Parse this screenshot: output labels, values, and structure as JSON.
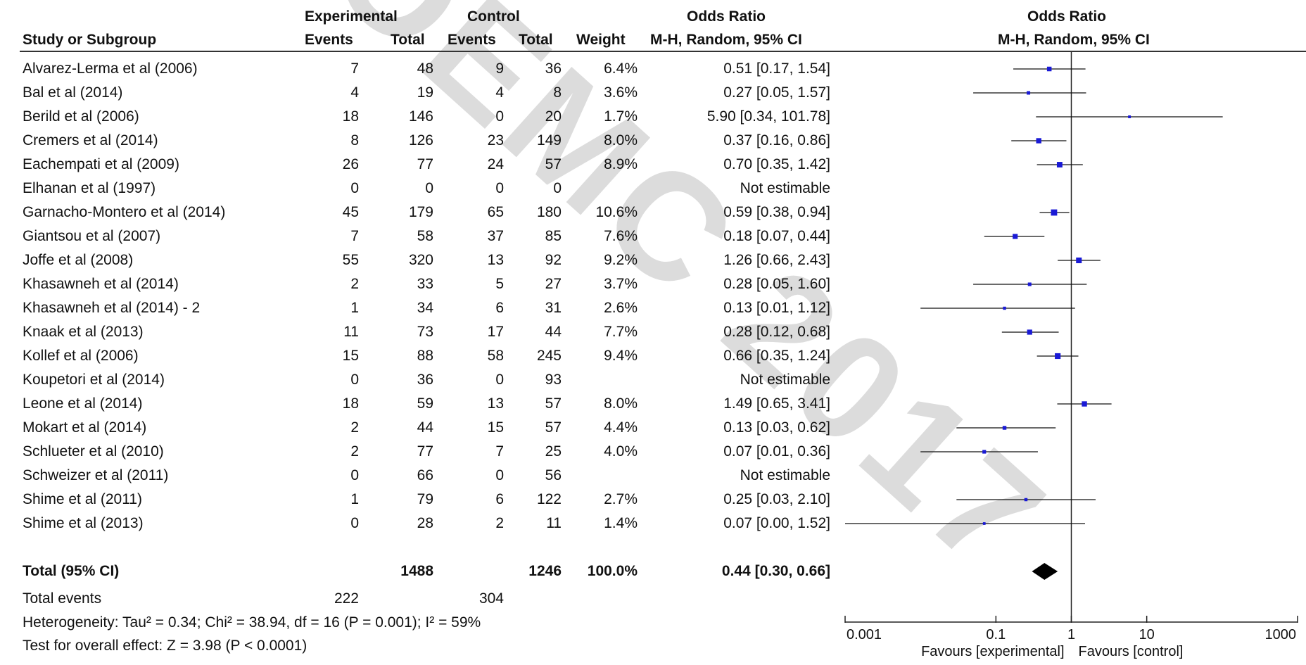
{
  "watermark": "OEMC 2017",
  "headers": {
    "group_exp": "Experimental",
    "group_ctrl": "Control",
    "odds_ratio": "Odds Ratio",
    "study": "Study or Subgroup",
    "events": "Events",
    "total": "Total",
    "weight": "Weight",
    "method": "M-H, Random, 95% CI",
    "plot_title": "Odds Ratio",
    "plot_method": "M-H, Random, 95% CI"
  },
  "summary": {
    "label": "Total (95% CI)",
    "exp_total": "1488",
    "ctrl_total": "1246",
    "weight": "100.0%",
    "ci_text": "0.44 [0.30, 0.66]",
    "events_label": "Total events",
    "exp_events": "222",
    "ctrl_events": "304",
    "heterogeneity": "Heterogeneity: Tau² = 0.34; Chi² = 38.94, df = 16 (P = 0.001); I² = 59%",
    "overall_effect": "Test for overall effect: Z = 3.98 (P < 0.0001)"
  },
  "axis": {
    "ticks": [
      "0.001",
      "0.1",
      "1",
      "10",
      "1000"
    ],
    "favours_left": "Favours [experimental]",
    "favours_right": "Favours [control]"
  },
  "chart_data": {
    "type": "forest",
    "xscale": "log",
    "xlim": [
      0.001,
      1000
    ],
    "null_line": 1,
    "summary": {
      "or": 0.44,
      "lo": 0.3,
      "hi": 0.66
    },
    "studies": [
      {
        "study": "Alvarez-Lerma et al (2006)",
        "e_ev": "7",
        "e_tot": "48",
        "c_ev": "9",
        "c_tot": "36",
        "weight": "6.4%",
        "ci": "0.51 [0.17, 1.54]",
        "or": 0.51,
        "lo": 0.17,
        "hi": 1.54
      },
      {
        "study": "Bal et al (2014)",
        "e_ev": "4",
        "e_tot": "19",
        "c_ev": "4",
        "c_tot": "8",
        "weight": "3.6%",
        "ci": "0.27 [0.05, 1.57]",
        "or": 0.27,
        "lo": 0.05,
        "hi": 1.57
      },
      {
        "study": "Berild et al (2006)",
        "e_ev": "18",
        "e_tot": "146",
        "c_ev": "0",
        "c_tot": "20",
        "weight": "1.7%",
        "ci": "5.90 [0.34, 101.78]",
        "or": 5.9,
        "lo": 0.34,
        "hi": 101.78
      },
      {
        "study": "Cremers et al (2014)",
        "e_ev": "8",
        "e_tot": "126",
        "c_ev": "23",
        "c_tot": "149",
        "weight": "8.0%",
        "ci": "0.37 [0.16, 0.86]",
        "or": 0.37,
        "lo": 0.16,
        "hi": 0.86
      },
      {
        "study": "Eachempati et al (2009)",
        "e_ev": "26",
        "e_tot": "77",
        "c_ev": "24",
        "c_tot": "57",
        "weight": "8.9%",
        "ci": "0.70 [0.35, 1.42]",
        "or": 0.7,
        "lo": 0.35,
        "hi": 1.42
      },
      {
        "study": "Elhanan et al (1997)",
        "e_ev": "0",
        "e_tot": "0",
        "c_ev": "0",
        "c_tot": "0",
        "weight": "",
        "ci": "Not estimable",
        "or": null,
        "lo": null,
        "hi": null
      },
      {
        "study": "Garnacho-Montero et al (2014)",
        "e_ev": "45",
        "e_tot": "179",
        "c_ev": "65",
        "c_tot": "180",
        "weight": "10.6%",
        "ci": "0.59 [0.38, 0.94]",
        "or": 0.59,
        "lo": 0.38,
        "hi": 0.94
      },
      {
        "study": "Giantsou et al (2007)",
        "e_ev": "7",
        "e_tot": "58",
        "c_ev": "37",
        "c_tot": "85",
        "weight": "7.6%",
        "ci": "0.18 [0.07, 0.44]",
        "or": 0.18,
        "lo": 0.07,
        "hi": 0.44
      },
      {
        "study": "Joffe et al (2008)",
        "e_ev": "55",
        "e_tot": "320",
        "c_ev": "13",
        "c_tot": "92",
        "weight": "9.2%",
        "ci": "1.26 [0.66, 2.43]",
        "or": 1.26,
        "lo": 0.66,
        "hi": 2.43
      },
      {
        "study": "Khasawneh et al (2014)",
        "e_ev": "2",
        "e_tot": "33",
        "c_ev": "5",
        "c_tot": "27",
        "weight": "3.7%",
        "ci": "0.28 [0.05, 1.60]",
        "or": 0.28,
        "lo": 0.05,
        "hi": 1.6
      },
      {
        "study": "Khasawneh et al (2014) - 2",
        "e_ev": "1",
        "e_tot": "34",
        "c_ev": "6",
        "c_tot": "31",
        "weight": "2.6%",
        "ci": "0.13 [0.01, 1.12]",
        "or": 0.13,
        "lo": 0.01,
        "hi": 1.12
      },
      {
        "study": "Knaak et al (2013)",
        "e_ev": "11",
        "e_tot": "73",
        "c_ev": "17",
        "c_tot": "44",
        "weight": "7.7%",
        "ci": "0.28 [0.12, 0.68]",
        "or": 0.28,
        "lo": 0.12,
        "hi": 0.68
      },
      {
        "study": "Kollef et al (2006)",
        "e_ev": "15",
        "e_tot": "88",
        "c_ev": "58",
        "c_tot": "245",
        "weight": "9.4%",
        "ci": "0.66 [0.35, 1.24]",
        "or": 0.66,
        "lo": 0.35,
        "hi": 1.24
      },
      {
        "study": "Koupetori et al (2014)",
        "e_ev": "0",
        "e_tot": "36",
        "c_ev": "0",
        "c_tot": "93",
        "weight": "",
        "ci": "Not estimable",
        "or": null,
        "lo": null,
        "hi": null
      },
      {
        "study": "Leone et al (2014)",
        "e_ev": "18",
        "e_tot": "59",
        "c_ev": "13",
        "c_tot": "57",
        "weight": "8.0%",
        "ci": "1.49 [0.65, 3.41]",
        "or": 1.49,
        "lo": 0.65,
        "hi": 3.41
      },
      {
        "study": "Mokart et al (2014)",
        "e_ev": "2",
        "e_tot": "44",
        "c_ev": "15",
        "c_tot": "57",
        "weight": "4.4%",
        "ci": "0.13 [0.03, 0.62]",
        "or": 0.13,
        "lo": 0.03,
        "hi": 0.62
      },
      {
        "study": "Schlueter et al (2010)",
        "e_ev": "2",
        "e_tot": "77",
        "c_ev": "7",
        "c_tot": "25",
        "weight": "4.0%",
        "ci": "0.07 [0.01, 0.36]",
        "or": 0.07,
        "lo": 0.01,
        "hi": 0.36
      },
      {
        "study": "Schweizer et al (2011)",
        "e_ev": "0",
        "e_tot": "66",
        "c_ev": "0",
        "c_tot": "56",
        "weight": "",
        "ci": "Not estimable",
        "or": null,
        "lo": null,
        "hi": null
      },
      {
        "study": "Shime et al (2011)",
        "e_ev": "1",
        "e_tot": "79",
        "c_ev": "6",
        "c_tot": "122",
        "weight": "2.7%",
        "ci": "0.25 [0.03, 2.10]",
        "or": 0.25,
        "lo": 0.03,
        "hi": 2.1
      },
      {
        "study": "Shime et al (2013)",
        "e_ev": "0",
        "e_tot": "28",
        "c_ev": "2",
        "c_tot": "11",
        "weight": "1.4%",
        "ci": "0.07 [0.00, 1.52]",
        "or": 0.07,
        "lo": 0.0,
        "hi": 1.52
      }
    ]
  }
}
